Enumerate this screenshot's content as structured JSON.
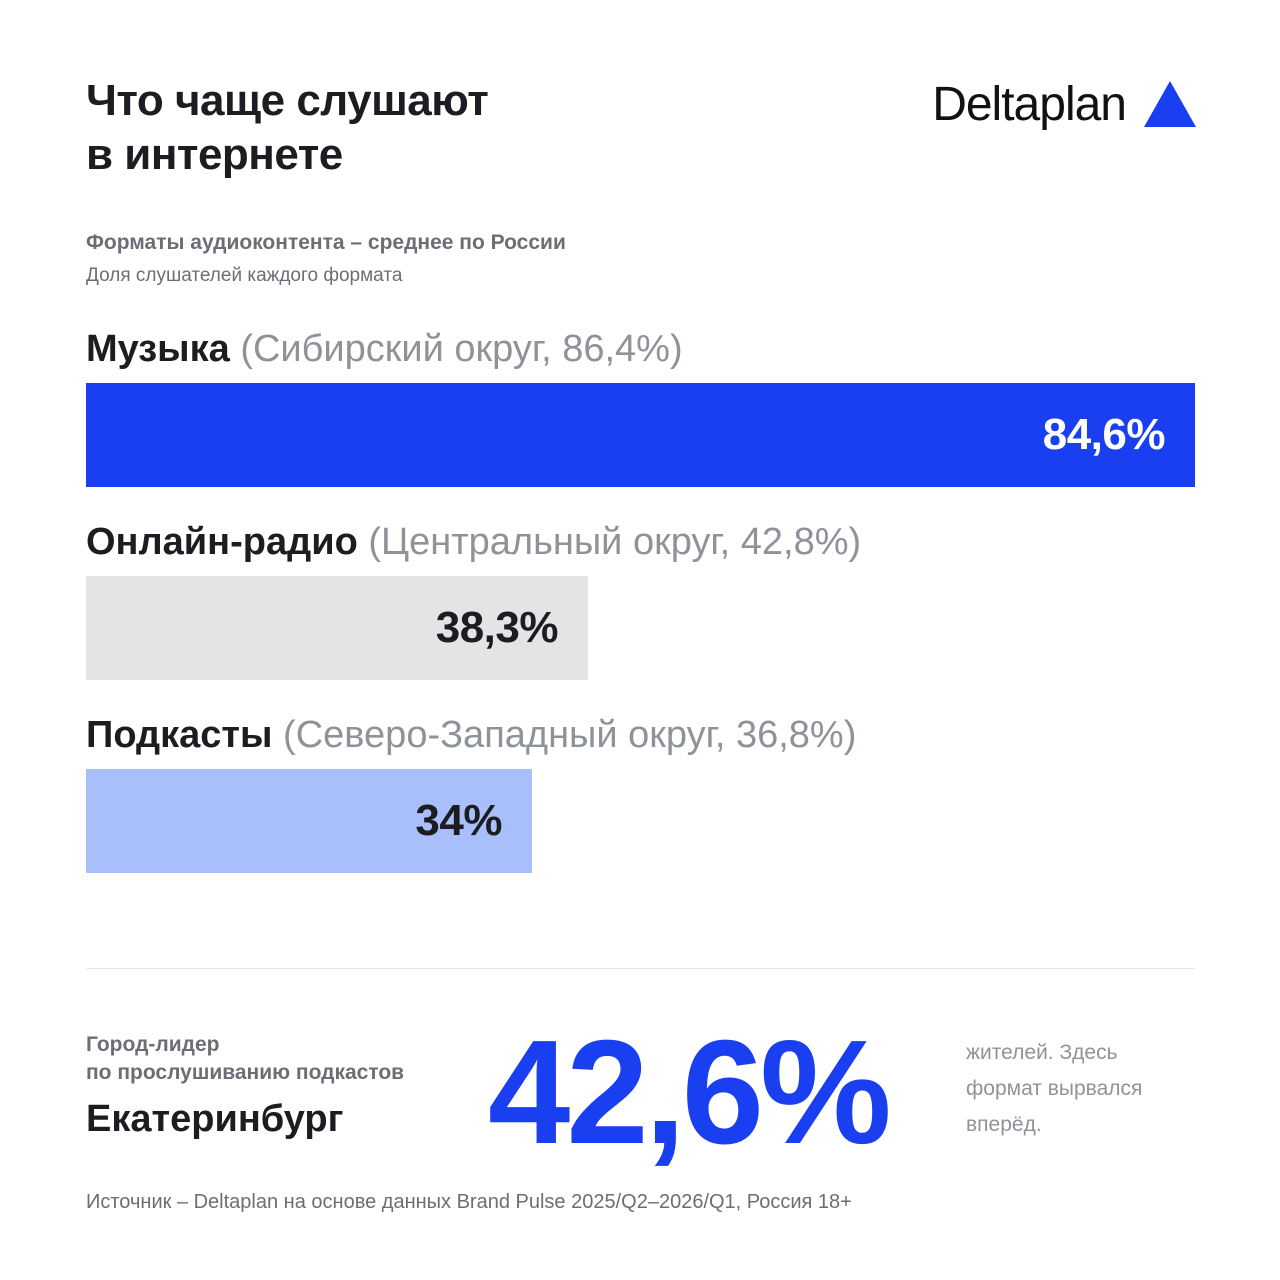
{
  "header": {
    "title_line1": "Что чаще слушают",
    "title_line2": "в интернете",
    "brand": "Deltaplan",
    "brand_color": "#1a3ff0"
  },
  "subtitle": "Форматы аудиоконтента – среднее по России",
  "subnote": "Доля слушателей каждого формата",
  "chart_data": {
    "type": "bar",
    "orientation": "horizontal",
    "title": "Форматы аудиоконтента – среднее по России",
    "subtitle": "Доля слушателей каждого формата",
    "unit": "%",
    "xlim": [
      0,
      84.6
    ],
    "categories": [
      "Музыка",
      "Онлайн-радио",
      "Подкасты"
    ],
    "values": [
      84.6,
      38.3,
      34
    ],
    "value_labels": [
      "84,6%",
      "38,3%",
      "34%"
    ],
    "annotations": [
      "(Сибирский округ, 86,4%)",
      "(Центральный округ, 42,8%)",
      "(Северо-Западный округ, 36,8%)"
    ],
    "colors": [
      "#1a3ff0",
      "#e3e4e6",
      "#a9bffc"
    ],
    "label_colors": [
      "#ffffff",
      "#1b1d21",
      "#1b1d21"
    ]
  },
  "leader": {
    "caption_line1": "Город-лидер",
    "caption_line2": "по прослушиванию подкастов",
    "city": "Екатеринбург",
    "value": "42,6%",
    "note": "жителей. Здесь формат вырвался вперёд."
  },
  "source": "Источник – Deltaplan на основе данных Brand Pulse 2025/Q2–2026/Q1, Россия 18+"
}
